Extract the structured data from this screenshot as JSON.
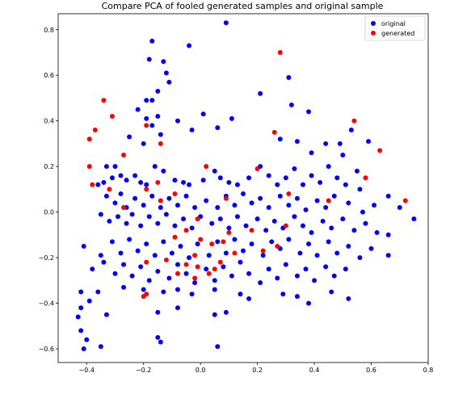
{
  "chart_data": {
    "type": "scatter",
    "title": "Compare PCA of fooled generated samples and original sample",
    "xlabel": "",
    "ylabel": "",
    "xlim": [
      -0.5,
      0.8
    ],
    "ylim": [
      -0.66,
      0.87
    ],
    "xticks": [
      -0.4,
      -0.2,
      0.0,
      0.2,
      0.4,
      0.6,
      0.8
    ],
    "xtick_labels": [
      "−0.4",
      "−0.2",
      "0.0",
      "0.2",
      "0.4",
      "0.6",
      "0.8"
    ],
    "yticks": [
      -0.6,
      -0.4,
      -0.2,
      0.0,
      0.2,
      0.4,
      0.6,
      0.8
    ],
    "ytick_labels": [
      "−0.6",
      "−0.4",
      "−0.2",
      "0.0",
      "0.2",
      "0.4",
      "0.6",
      "0.8"
    ],
    "grid": false,
    "legend_position": "top-right",
    "series": [
      {
        "name": "original",
        "color": "#0000ff",
        "points": [
          [
            0.09,
            0.83
          ],
          [
            -0.17,
            0.75
          ],
          [
            -0.04,
            0.73
          ],
          [
            -0.13,
            0.66
          ],
          [
            -0.18,
            0.67
          ],
          [
            -0.12,
            0.61
          ],
          [
            0.31,
            0.59
          ],
          [
            -0.11,
            0.57
          ],
          [
            -0.15,
            0.53
          ],
          [
            -0.17,
            0.49
          ],
          [
            0.21,
            0.52
          ],
          [
            -0.19,
            0.49
          ],
          [
            -0.22,
            0.45
          ],
          [
            -0.15,
            0.42
          ],
          [
            -0.19,
            0.41
          ],
          [
            -0.08,
            0.4
          ],
          [
            -0.03,
            0.36
          ],
          [
            0.06,
            0.37
          ],
          [
            -0.17,
            0.38
          ],
          [
            0.01,
            0.43
          ],
          [
            0.11,
            0.41
          ],
          [
            -0.25,
            0.33
          ],
          [
            -0.2,
            0.3
          ],
          [
            -0.14,
            0.34
          ],
          [
            0.32,
            0.47
          ],
          [
            0.38,
            0.44
          ],
          [
            0.34,
            0.31
          ],
          [
            0.28,
            0.32
          ],
          [
            0.44,
            0.3
          ],
          [
            0.39,
            0.26
          ],
          [
            0.49,
            0.3
          ],
          [
            0.53,
            0.36
          ],
          [
            0.59,
            0.31
          ],
          [
            0.5,
            0.25
          ],
          [
            0.55,
            0.18
          ],
          [
            -0.33,
            0.2
          ],
          [
            -0.3,
            0.2
          ],
          [
            -0.28,
            0.16
          ],
          [
            -0.31,
            0.15
          ],
          [
            -0.34,
            0.13
          ],
          [
            -0.36,
            0.12
          ],
          [
            -0.26,
            0.14
          ],
          [
            -0.23,
            0.16
          ],
          [
            -0.21,
            0.13
          ],
          [
            -0.19,
            0.12
          ],
          [
            -0.16,
            0.2
          ],
          [
            -0.13,
            0.18
          ],
          [
            -0.09,
            0.14
          ],
          [
            -0.06,
            0.13
          ],
          [
            -0.04,
            0.12
          ],
          [
            0.01,
            0.14
          ],
          [
            0.05,
            0.18
          ],
          [
            0.07,
            0.15
          ],
          [
            0.1,
            0.13
          ],
          [
            0.13,
            0.12
          ],
          [
            0.17,
            0.15
          ],
          [
            0.21,
            0.2
          ],
          [
            0.24,
            0.16
          ],
          [
            0.27,
            0.12
          ],
          [
            0.3,
            0.15
          ],
          [
            0.33,
            0.19
          ],
          [
            0.36,
            0.12
          ],
          [
            0.39,
            0.16
          ],
          [
            0.42,
            0.13
          ],
          [
            0.45,
            0.2
          ],
          [
            0.48,
            0.15
          ],
          [
            0.51,
            0.12
          ],
          [
            0.56,
            0.1
          ],
          [
            -0.33,
            0.07
          ],
          [
            -0.3,
            0.04
          ],
          [
            -0.28,
            0.08
          ],
          [
            -0.26,
            0.02
          ],
          [
            -0.23,
            0.06
          ],
          [
            -0.2,
            0.03
          ],
          [
            -0.17,
            0.07
          ],
          [
            -0.14,
            0.02
          ],
          [
            -0.11,
            0.06
          ],
          [
            -0.08,
            0.03
          ],
          [
            -0.05,
            0.07
          ],
          [
            -0.02,
            0.02
          ],
          [
            0.02,
            0.05
          ],
          [
            0.06,
            0.02
          ],
          [
            0.09,
            0.07
          ],
          [
            0.12,
            0.03
          ],
          [
            0.15,
            0.08
          ],
          [
            0.18,
            0.04
          ],
          [
            0.21,
            0.06
          ],
          [
            0.24,
            0.02
          ],
          [
            0.28,
            0.07
          ],
          [
            0.31,
            0.03
          ],
          [
            0.34,
            0.06
          ],
          [
            0.37,
            0.01
          ],
          [
            0.41,
            0.05
          ],
          [
            0.44,
            0.02
          ],
          [
            0.47,
            0.07
          ],
          [
            0.52,
            0.04
          ],
          [
            0.57,
            0.0
          ],
          [
            0.61,
            0.03
          ],
          [
            0.66,
            0.07
          ],
          [
            0.7,
            0.02
          ],
          [
            0.75,
            -0.03
          ],
          [
            -0.35,
            -0.01
          ],
          [
            -0.32,
            -0.04
          ],
          [
            -0.29,
            -0.02
          ],
          [
            -0.26,
            -0.05
          ],
          [
            -0.24,
            -0.01
          ],
          [
            -0.21,
            -0.06
          ],
          [
            -0.18,
            -0.02
          ],
          [
            -0.15,
            -0.05
          ],
          [
            -0.12,
            -0.01
          ],
          [
            -0.09,
            -0.06
          ],
          [
            -0.06,
            -0.03
          ],
          [
            -0.03,
            -0.07
          ],
          [
            0.0,
            -0.02
          ],
          [
            0.04,
            -0.05
          ],
          [
            0.07,
            -0.03
          ],
          [
            0.1,
            -0.07
          ],
          [
            0.13,
            -0.02
          ],
          [
            0.16,
            -0.06
          ],
          [
            0.2,
            -0.03
          ],
          [
            0.23,
            -0.08
          ],
          [
            0.26,
            -0.04
          ],
          [
            0.29,
            -0.07
          ],
          [
            0.33,
            -0.02
          ],
          [
            0.36,
            -0.06
          ],
          [
            0.39,
            -0.09
          ],
          [
            0.43,
            -0.04
          ],
          [
            0.46,
            -0.07
          ],
          [
            0.5,
            -0.03
          ],
          [
            0.54,
            -0.08
          ],
          [
            0.58,
            -0.05
          ],
          [
            0.62,
            -0.09
          ],
          [
            0.66,
            -0.1
          ],
          [
            -0.41,
            -0.15
          ],
          [
            -0.35,
            -0.19
          ],
          [
            -0.31,
            -0.13
          ],
          [
            -0.28,
            -0.18
          ],
          [
            -0.25,
            -0.12
          ],
          [
            -0.22,
            -0.17
          ],
          [
            -0.19,
            -0.14
          ],
          [
            -0.16,
            -0.19
          ],
          [
            -0.13,
            -0.13
          ],
          [
            -0.1,
            -0.18
          ],
          [
            -0.07,
            -0.15
          ],
          [
            -0.04,
            -0.2
          ],
          [
            -0.01,
            -0.14
          ],
          [
            0.03,
            -0.19
          ],
          [
            0.06,
            -0.13
          ],
          [
            0.09,
            -0.18
          ],
          [
            0.12,
            -0.12
          ],
          [
            0.15,
            -0.17
          ],
          [
            0.18,
            -0.14
          ],
          [
            0.22,
            -0.19
          ],
          [
            0.25,
            -0.13
          ],
          [
            0.28,
            -0.16
          ],
          [
            0.31,
            -0.12
          ],
          [
            0.35,
            -0.18
          ],
          [
            0.38,
            -0.14
          ],
          [
            0.41,
            -0.19
          ],
          [
            0.45,
            -0.13
          ],
          [
            0.48,
            -0.18
          ],
          [
            0.52,
            -0.15
          ],
          [
            0.56,
            -0.2
          ],
          [
            0.6,
            -0.16
          ],
          [
            0.66,
            -0.19
          ],
          [
            -0.38,
            -0.25
          ],
          [
            -0.34,
            -0.22
          ],
          [
            -0.3,
            -0.27
          ],
          [
            -0.27,
            -0.23
          ],
          [
            -0.24,
            -0.28
          ],
          [
            -0.21,
            -0.24
          ],
          [
            -0.18,
            -0.3
          ],
          [
            -0.15,
            -0.26
          ],
          [
            -0.11,
            -0.29
          ],
          [
            -0.08,
            -0.23
          ],
          [
            -0.05,
            -0.27
          ],
          [
            -0.02,
            -0.31
          ],
          [
            0.02,
            -0.25
          ],
          [
            0.05,
            -0.3
          ],
          [
            0.08,
            -0.24
          ],
          [
            0.11,
            -0.28
          ],
          [
            0.14,
            -0.22
          ],
          [
            0.17,
            -0.27
          ],
          [
            0.21,
            -0.31
          ],
          [
            0.24,
            -0.25
          ],
          [
            0.27,
            -0.29
          ],
          [
            0.3,
            -0.23
          ],
          [
            0.34,
            -0.28
          ],
          [
            0.37,
            -0.25
          ],
          [
            0.4,
            -0.3
          ],
          [
            0.44,
            -0.24
          ],
          [
            0.47,
            -0.28
          ],
          [
            0.51,
            -0.25
          ],
          [
            -0.42,
            -0.35
          ],
          [
            -0.36,
            -0.35
          ],
          [
            -0.27,
            -0.33
          ],
          [
            -0.2,
            -0.34
          ],
          [
            -0.13,
            -0.35
          ],
          [
            -0.08,
            -0.34
          ],
          [
            -0.03,
            -0.36
          ],
          [
            0.05,
            -0.34
          ],
          [
            0.14,
            -0.36
          ],
          [
            0.17,
            -0.38
          ],
          [
            0.29,
            -0.36
          ],
          [
            0.34,
            -0.37
          ],
          [
            0.38,
            -0.4
          ],
          [
            0.46,
            -0.35
          ],
          [
            0.52,
            -0.38
          ],
          [
            -0.43,
            -0.46
          ],
          [
            -0.42,
            -0.42
          ],
          [
            -0.39,
            -0.39
          ],
          [
            -0.33,
            -0.45
          ],
          [
            -0.15,
            -0.44
          ],
          [
            -0.08,
            -0.42
          ],
          [
            0.05,
            -0.45
          ],
          [
            0.09,
            -0.44
          ],
          [
            -0.42,
            -0.52
          ],
          [
            -0.4,
            -0.56
          ],
          [
            -0.41,
            -0.6
          ],
          [
            -0.35,
            -0.59
          ],
          [
            -0.15,
            -0.55
          ],
          [
            -0.14,
            -0.57
          ],
          [
            0.06,
            -0.59
          ]
        ]
      },
      {
        "name": "generated",
        "color": "#ff0000",
        "points": [
          [
            0.28,
            0.7
          ],
          [
            -0.34,
            0.49
          ],
          [
            -0.31,
            0.42
          ],
          [
            -0.37,
            0.36
          ],
          [
            -0.39,
            0.32
          ],
          [
            0.54,
            0.4
          ],
          [
            0.63,
            0.27
          ],
          [
            -0.19,
            0.38
          ],
          [
            -0.14,
            0.3
          ],
          [
            0.26,
            0.35
          ],
          [
            -0.27,
            0.25
          ],
          [
            0.02,
            0.2
          ],
          [
            0.2,
            0.19
          ],
          [
            -0.39,
            0.2
          ],
          [
            -0.38,
            0.12
          ],
          [
            -0.32,
            0.1
          ],
          [
            0.58,
            0.15
          ],
          [
            0.72,
            0.05
          ],
          [
            -0.19,
            0.1
          ],
          [
            -0.15,
            0.13
          ],
          [
            -0.09,
            0.08
          ],
          [
            0.09,
            0.06
          ],
          [
            0.45,
            0.05
          ],
          [
            -0.27,
            0.02
          ],
          [
            -0.01,
            -0.03
          ],
          [
            -0.14,
            0.05
          ],
          [
            0.31,
            0.08
          ],
          [
            -0.05,
            -0.08
          ],
          [
            0.1,
            -0.09
          ],
          [
            0.3,
            -0.06
          ],
          [
            0.18,
            -0.08
          ],
          [
            -0.09,
            -0.11
          ],
          [
            0.0,
            -0.12
          ],
          [
            0.04,
            -0.14
          ],
          [
            0.08,
            -0.13
          ],
          [
            -0.02,
            -0.19
          ],
          [
            0.12,
            -0.18
          ],
          [
            0.22,
            -0.17
          ],
          [
            0.27,
            -0.15
          ],
          [
            -0.19,
            -0.22
          ],
          [
            -0.12,
            -0.21
          ],
          [
            -0.05,
            -0.23
          ],
          [
            -0.01,
            -0.24
          ],
          [
            0.03,
            -0.27
          ],
          [
            0.07,
            -0.22
          ],
          [
            -0.08,
            -0.27
          ],
          [
            -0.02,
            -0.29
          ],
          [
            -0.2,
            -0.37
          ],
          [
            -0.19,
            -0.36
          ],
          [
            0.05,
            -0.25
          ]
        ]
      }
    ]
  }
}
